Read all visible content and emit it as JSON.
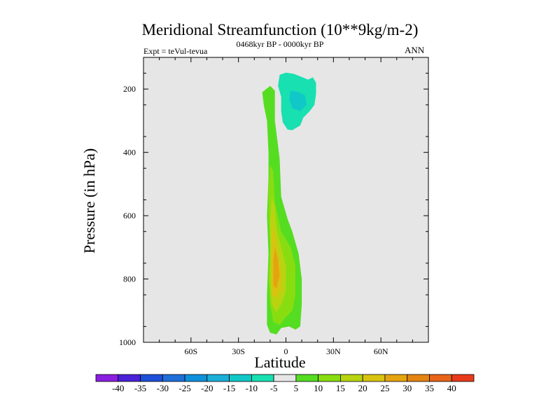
{
  "header": {
    "title": "Meridional Streamfunction (10**9kg/m-2)",
    "experiment": "Expt = teVul-tevua",
    "period": "0468kyr BP - 0000kyr BP",
    "season": "ANN"
  },
  "chart_data": {
    "type": "contour",
    "title": "Meridional Streamfunction (10**9kg/m-2)",
    "xlabel": "Latitude",
    "ylabel": "Pressure (in hPa)",
    "xlim": [
      -90,
      90
    ],
    "ylim": [
      1000,
      100
    ],
    "xticks": [
      -60,
      -30,
      0,
      30,
      60
    ],
    "xtick_labels": [
      "60S",
      "30S",
      "0",
      "30N",
      "60N"
    ],
    "yticks": [
      200,
      400,
      600,
      800,
      1000
    ],
    "ytick_labels": [
      "200",
      "400",
      "600",
      "800",
      "1000"
    ],
    "contour_levels": [
      -40,
      -35,
      -30,
      -25,
      -20,
      -15,
      -10,
      -5,
      5,
      10,
      15,
      20,
      25,
      30,
      35,
      40
    ],
    "colorbar_labels": [
      "-40",
      "-35",
      "-30",
      "-25",
      "-20",
      "-15",
      "-10",
      "-5",
      "5",
      "10",
      "15",
      "20",
      "25",
      "30",
      "35",
      "40"
    ],
    "colorbar_colors": [
      "#8a1fe0",
      "#4a22d8",
      "#1f4fd8",
      "#1f6fd8",
      "#0f90dc",
      "#1aaed8",
      "#10c8c8",
      "#18e0b0",
      "#e6e6e6",
      "#55dd22",
      "#88dd11",
      "#b8d410",
      "#d8c410",
      "#e4a410",
      "#e48412",
      "#e86418",
      "#e83a1a"
    ],
    "background_color": "#e6e6e6",
    "features": [
      {
        "name": "positive-cell",
        "center_lat": -5,
        "center_pressure": 780,
        "max_value": 25,
        "lat_range": [
          -15,
          12
        ],
        "pressure_range": [
          190,
          975
        ]
      },
      {
        "name": "negative-cell",
        "center_lat": 7,
        "center_pressure": 240,
        "min_value": -10,
        "lat_range": [
          -5,
          20
        ],
        "pressure_range": [
          145,
          330
        ]
      }
    ]
  }
}
